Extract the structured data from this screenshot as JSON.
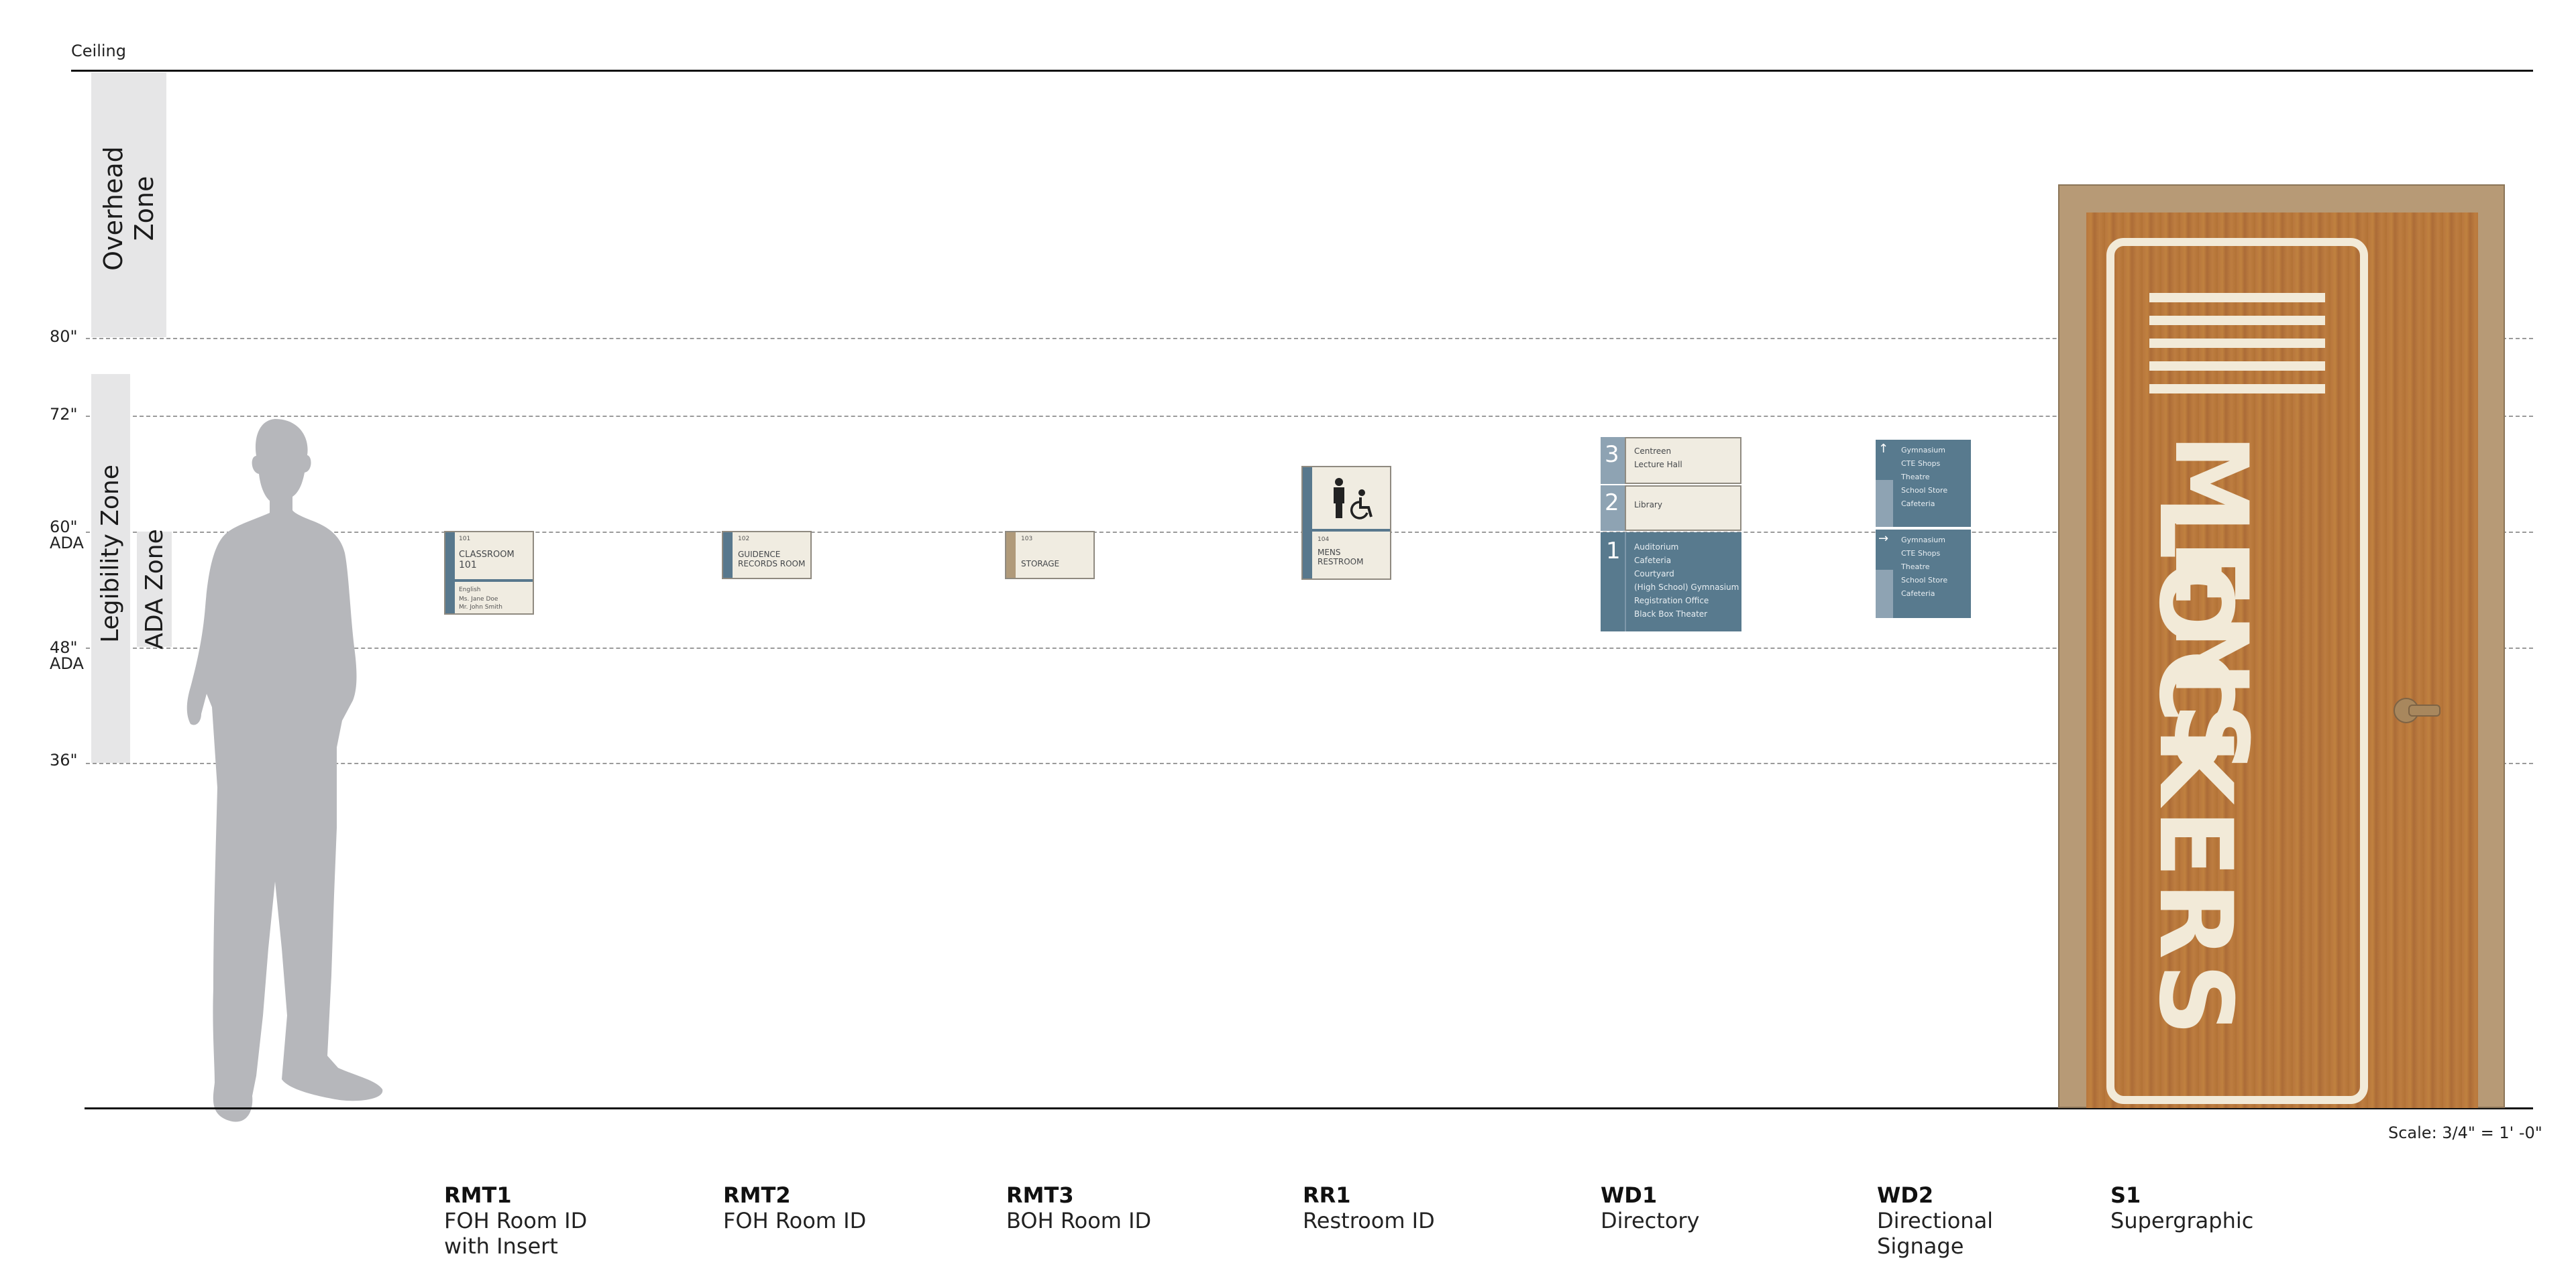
{
  "ceiling_label": "Ceiling",
  "height_marks": {
    "h80": "80\"",
    "h72": "72\"",
    "h60": "60\"",
    "h60_sub": "ADA",
    "h48": "48\"",
    "h48_sub": "ADA",
    "h36": "36\""
  },
  "zones": {
    "overhead": "Overhead Zone",
    "legibility": "Legibility Zone",
    "ada": "ADA Zone"
  },
  "scale_note": "Scale: 3/4\" = 1' -0\"",
  "signs": {
    "rmt1": {
      "code": "RMT1",
      "desc": "FOH Room ID with Insert",
      "num": "101",
      "name_l1": "CLASSROOM",
      "name_l2": "101",
      "insert_l1": "English",
      "insert_l2": "Ms. Jane Doe",
      "insert_l3": "Mr. John Smith"
    },
    "rmt2": {
      "code": "RMT2",
      "desc": "FOH Room ID",
      "num": "102",
      "name_l1": "GUIDENCE",
      "name_l2": "RECORDS ROOM"
    },
    "rmt3": {
      "code": "RMT3",
      "desc": "BOH Room ID",
      "num": "103",
      "name_l1": "STORAGE"
    },
    "rr1": {
      "code": "RR1",
      "desc": "Restroom ID",
      "num": "104",
      "name_l1": "MENS",
      "name_l2": "RESTROOM"
    },
    "wd1": {
      "code": "WD1",
      "desc": "Directory",
      "levels": [
        {
          "num": "3",
          "items": [
            "Centreen",
            "Lecture Hall"
          ]
        },
        {
          "num": "2",
          "items": [
            "Library"
          ]
        },
        {
          "num": "1",
          "items": [
            "Auditorium",
            "Cafeteria",
            "Courtyard",
            "(High School) Gymnasium",
            "Registration Office",
            "Black Box Theater"
          ]
        }
      ]
    },
    "wd2": {
      "code": "WD2",
      "desc": "Directional Signage",
      "up_items": [
        "Gymnasium",
        "CTE Shops",
        "Theatre",
        "School Store",
        "Cafeteria"
      ],
      "right_items": [
        "Gymnasium",
        "CTE Shops",
        "Theatre",
        "School Store",
        "Cafeteria"
      ]
    },
    "s1": {
      "code": "S1",
      "desc": "Supergraphic",
      "line1": "MENS",
      "line2": "LOCKERS"
    }
  },
  "colors": {
    "sign_accent": "#58788d",
    "sign_face": "#f0ece1",
    "door_wood": "#b8773e",
    "door_frame": "#b79a76",
    "figure": "#b6b7bb",
    "zone_fill": "#e6e6e7"
  }
}
